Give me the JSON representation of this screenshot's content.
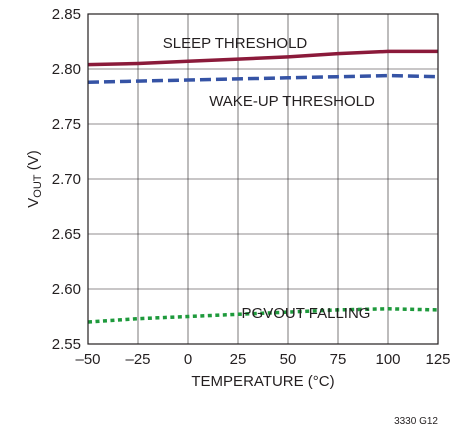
{
  "chart_data": {
    "type": "line",
    "xlabel": "TEMPERATURE (°C)",
    "ylabel_main": "V",
    "ylabel_sub": "OUT",
    "ylabel_unit": " (V)",
    "figure_id": "3330 G12",
    "xlim": [
      -50,
      125
    ],
    "ylim": [
      2.55,
      2.85
    ],
    "x_ticks": [
      -50,
      -25,
      0,
      25,
      50,
      75,
      100,
      125
    ],
    "x_tick_labels": [
      "–50",
      "–25",
      "0",
      "25",
      "50",
      "75",
      "100",
      "125"
    ],
    "y_ticks": [
      2.55,
      2.6,
      2.65,
      2.7,
      2.75,
      2.8,
      2.85
    ],
    "y_tick_labels": [
      "2.55",
      "2.60",
      "2.65",
      "2.70",
      "2.75",
      "2.80",
      "2.85"
    ],
    "grid": true,
    "series": [
      {
        "name": "SLEEP THRESHOLD",
        "color": "#8b1a3a",
        "style": "solid",
        "x": [
          -50,
          -25,
          0,
          25,
          50,
          75,
          100,
          125
        ],
        "values": [
          2.804,
          2.805,
          2.807,
          2.809,
          2.811,
          2.814,
          2.816,
          2.816
        ]
      },
      {
        "name": "WAKE-UP THRESHOLD",
        "color": "#3553a5",
        "style": "dashed",
        "x": [
          -50,
          -25,
          0,
          25,
          50,
          75,
          100,
          125
        ],
        "values": [
          2.788,
          2.789,
          2.79,
          2.791,
          2.792,
          2.793,
          2.794,
          2.793
        ]
      },
      {
        "name": "PGVOUT FALLING",
        "color": "#1e9a3c",
        "style": "dotted",
        "x": [
          -50,
          -25,
          0,
          25,
          50,
          75,
          100,
          125
        ],
        "values": [
          2.57,
          2.573,
          2.575,
          2.577,
          2.579,
          2.581,
          2.582,
          2.581
        ]
      }
    ]
  }
}
